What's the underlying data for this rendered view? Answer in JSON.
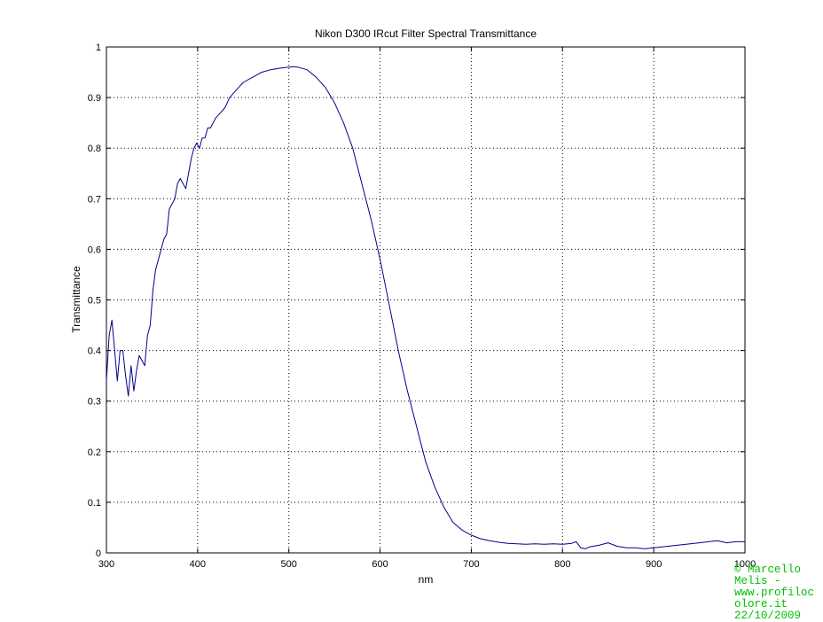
{
  "chart_data": {
    "type": "line",
    "title": "Nikon D300 IRcut Filter Spectral Transmittance",
    "xlabel": "nm",
    "ylabel": "Transmittance",
    "xlim": [
      300,
      1000
    ],
    "ylim": [
      0,
      1
    ],
    "xticks": [
      "300",
      "400",
      "500",
      "600",
      "700",
      "800",
      "900",
      "1000"
    ],
    "yticks": [
      "0",
      "0.1",
      "0.2",
      "0.3",
      "0.4",
      "0.5",
      "0.6",
      "0.7",
      "0.8",
      "0.9",
      "1"
    ],
    "grid": true,
    "grid_style": "dotted",
    "series": [
      {
        "color": "#00008b",
        "x": [
          300,
          303,
          306,
          309,
          312,
          315,
          318,
          321,
          324,
          327,
          330,
          333,
          336,
          339,
          342,
          345,
          348,
          351,
          354,
          357,
          360,
          363,
          366,
          369,
          372,
          375,
          378,
          381,
          384,
          387,
          390,
          393,
          396,
          399,
          402,
          405,
          408,
          411,
          414,
          417,
          420,
          425,
          430,
          435,
          440,
          445,
          450,
          460,
          470,
          480,
          490,
          500,
          505,
          510,
          520,
          530,
          540,
          550,
          560,
          570,
          580,
          590,
          600,
          610,
          620,
          630,
          640,
          650,
          660,
          670,
          680,
          690,
          700,
          710,
          720,
          730,
          740,
          750,
          760,
          770,
          780,
          790,
          800,
          810,
          815,
          820,
          825,
          830,
          840,
          850,
          860,
          870,
          880,
          890,
          900,
          910,
          920,
          930,
          940,
          950,
          960,
          970,
          980,
          990,
          1000
        ],
        "y": [
          0.34,
          0.43,
          0.46,
          0.4,
          0.34,
          0.4,
          0.4,
          0.35,
          0.31,
          0.37,
          0.32,
          0.36,
          0.39,
          0.38,
          0.37,
          0.43,
          0.45,
          0.52,
          0.56,
          0.58,
          0.6,
          0.62,
          0.63,
          0.68,
          0.69,
          0.7,
          0.73,
          0.74,
          0.73,
          0.72,
          0.75,
          0.78,
          0.8,
          0.81,
          0.8,
          0.82,
          0.82,
          0.84,
          0.84,
          0.85,
          0.86,
          0.87,
          0.88,
          0.9,
          0.91,
          0.92,
          0.93,
          0.94,
          0.95,
          0.955,
          0.958,
          0.96,
          0.961,
          0.96,
          0.955,
          0.94,
          0.92,
          0.89,
          0.85,
          0.8,
          0.73,
          0.66,
          0.58,
          0.49,
          0.4,
          0.32,
          0.25,
          0.18,
          0.13,
          0.09,
          0.06,
          0.045,
          0.035,
          0.028,
          0.024,
          0.021,
          0.019,
          0.018,
          0.017,
          0.018,
          0.017,
          0.018,
          0.017,
          0.019,
          0.022,
          0.01,
          0.008,
          0.012,
          0.015,
          0.02,
          0.013,
          0.01,
          0.01,
          0.008,
          0.01,
          0.012,
          0.014,
          0.016,
          0.018,
          0.02,
          0.022,
          0.024,
          0.02,
          0.022,
          0.022
        ]
      }
    ]
  },
  "credit": {
    "text": "© Marcello Melis - www.profiloc olore.it 22/10/2009",
    "color": "#00c000"
  }
}
